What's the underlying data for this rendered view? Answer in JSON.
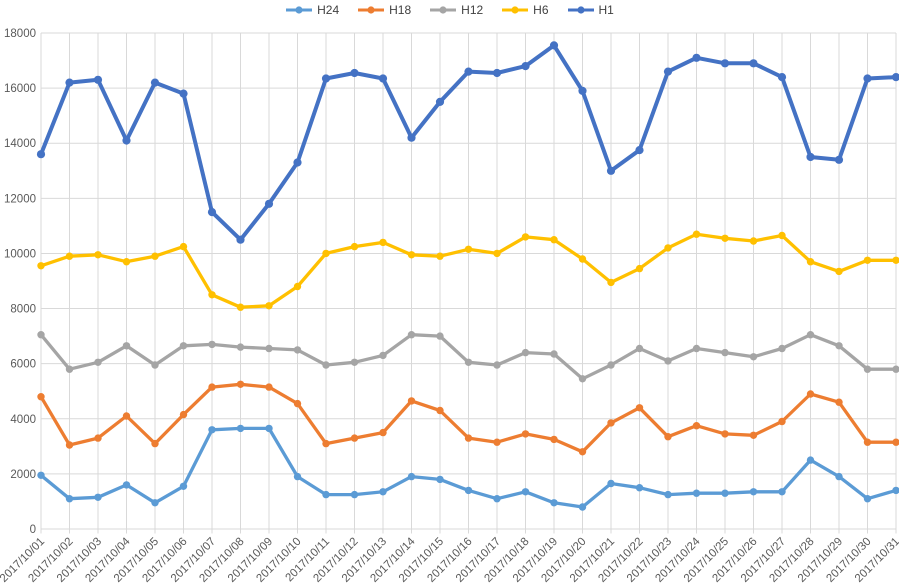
{
  "chart_data": {
    "type": "line",
    "title": "",
    "xlabel": "",
    "ylabel": "",
    "ylim": [
      0,
      18000
    ],
    "yticks": [
      0,
      2000,
      4000,
      6000,
      8000,
      10000,
      12000,
      14000,
      16000,
      18000
    ],
    "grid": true,
    "legend_position": "top-center",
    "x": [
      "2017/10/01",
      "2017/10/02",
      "2017/10/03",
      "2017/10/04",
      "2017/10/05",
      "2017/10/06",
      "2017/10/07",
      "2017/10/08",
      "2017/10/09",
      "2017/10/10",
      "2017/10/11",
      "2017/10/12",
      "2017/10/13",
      "2017/10/14",
      "2017/10/15",
      "2017/10/16",
      "2017/10/17",
      "2017/10/18",
      "2017/10/19",
      "2017/10/20",
      "2017/10/21",
      "2017/10/22",
      "2017/10/23",
      "2017/10/24",
      "2017/10/25",
      "2017/10/26",
      "2017/10/27",
      "2017/10/28",
      "2017/10/29",
      "2017/10/30",
      "2017/10/31"
    ],
    "series": [
      {
        "name": "H24",
        "color": "#5B9BD5",
        "values": [
          1950,
          1100,
          1150,
          1600,
          950,
          1550,
          3600,
          3650,
          3650,
          1900,
          1250,
          1250,
          1350,
          1900,
          1800,
          1400,
          1100,
          1350,
          950,
          800,
          1650,
          1500,
          1250,
          1300,
          1300,
          1350,
          1350,
          2500,
          1900,
          1100,
          1400
        ]
      },
      {
        "name": "H18",
        "color": "#ED7D31",
        "values": [
          4800,
          3050,
          3300,
          4100,
          3100,
          4150,
          5150,
          5250,
          5150,
          4550,
          3100,
          3300,
          3500,
          4650,
          4300,
          3300,
          3150,
          3450,
          3250,
          2800,
          3850,
          4400,
          3350,
          3750,
          3450,
          3400,
          3900,
          4900,
          4600,
          3150,
          3150
        ]
      },
      {
        "name": "H12",
        "color": "#A5A5A5",
        "values": [
          7050,
          5800,
          6050,
          6650,
          5950,
          6650,
          6700,
          6600,
          6550,
          6500,
          5950,
          6050,
          6300,
          7050,
          7000,
          6050,
          5950,
          6400,
          6350,
          5450,
          5950,
          6550,
          6100,
          6550,
          6400,
          6250,
          6550,
          7050,
          6650,
          5800,
          5800
        ]
      },
      {
        "name": "H6",
        "color": "#FFC000",
        "values": [
          9550,
          9900,
          9950,
          9700,
          9900,
          10250,
          8500,
          8050,
          8100,
          8800,
          10000,
          10250,
          10400,
          9950,
          9900,
          10150,
          10000,
          10600,
          10500,
          9800,
          8950,
          9450,
          10200,
          10700,
          10550,
          10450,
          10650,
          9700,
          9350,
          9750,
          9750
        ]
      },
      {
        "name": "H1",
        "color": "#4472C4",
        "values": [
          13600,
          16200,
          16300,
          14100,
          16200,
          15800,
          11500,
          10500,
          11800,
          13300,
          16350,
          16550,
          16350,
          14200,
          15500,
          16600,
          16550,
          16800,
          17550,
          15900,
          13000,
          13750,
          16600,
          17100,
          16900,
          16900,
          16400,
          13500,
          13400,
          16350,
          16400
        ]
      }
    ]
  },
  "style": {
    "background": "#FFFFFF",
    "gridline_color": "#D9D9D9",
    "axis_tick_label_color": "#595959",
    "legend_text_color": "#404040"
  }
}
